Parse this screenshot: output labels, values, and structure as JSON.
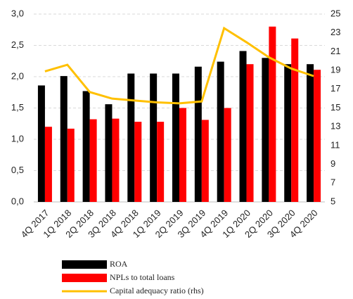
{
  "chart_data": {
    "type": "bar_line",
    "categories": [
      "4Q 2017",
      "1Q 2018",
      "2Q 2018",
      "3Q 2018",
      "4Q 2018",
      "1Q 2019",
      "2Q 2019",
      "3Q 2019",
      "4Q 2019",
      "1Q 2020",
      "2Q 2020",
      "3Q 2020",
      "4Q 2020"
    ],
    "series": [
      {
        "name": "ROA",
        "color": "#000000",
        "type": "bar",
        "values": [
          1.86,
          2.01,
          1.77,
          1.56,
          2.05,
          2.05,
          2.05,
          2.16,
          2.24,
          2.41,
          2.3,
          2.2,
          2.2
        ]
      },
      {
        "name": "NPLs to total loans",
        "color": "#ff0000",
        "type": "bar",
        "values": [
          1.2,
          1.17,
          1.32,
          1.33,
          1.28,
          1.28,
          1.5,
          1.31,
          1.5,
          2.2,
          2.8,
          2.61,
          2.11
        ]
      },
      {
        "name": "Capital adequacy ratio (rhs)",
        "color": "#ffc000",
        "type": "line",
        "axis": "y2",
        "values": [
          18.9,
          19.6,
          16.7,
          16.0,
          15.8,
          15.6,
          15.5,
          15.7,
          23.5,
          22.0,
          20.4,
          19.2,
          18.4
        ]
      }
    ],
    "ylim": [
      0,
      3
    ],
    "yticks": [
      {
        "value": 0,
        "label": "0,0"
      },
      {
        "value": 0.5,
        "label": "0,5"
      },
      {
        "value": 1,
        "label": "1,0"
      },
      {
        "value": 1.5,
        "label": "1,5"
      },
      {
        "value": 2,
        "label": "2,0"
      },
      {
        "value": 2.5,
        "label": "2,5"
      },
      {
        "value": 3,
        "label": "3,0"
      }
    ],
    "y2lim": [
      5,
      25
    ],
    "y2ticks": [
      5,
      7,
      9,
      11,
      13,
      15,
      17,
      19,
      21,
      23,
      25
    ],
    "grid": true,
    "legend": "bottom"
  }
}
